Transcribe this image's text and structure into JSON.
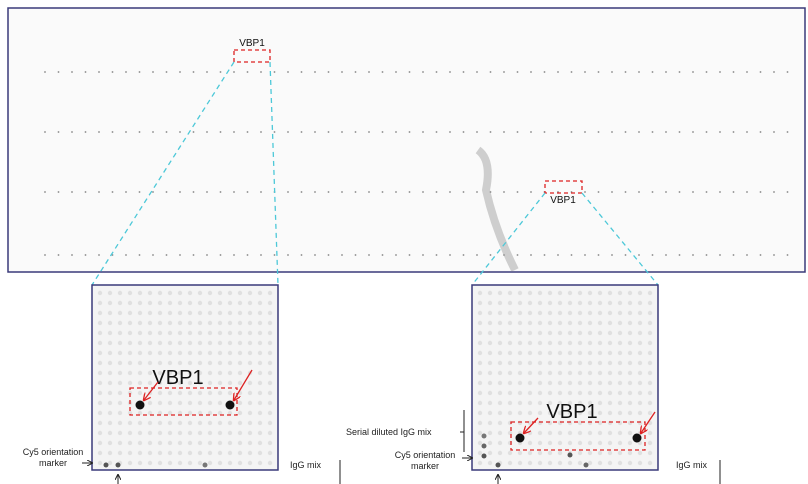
{
  "top_panel": {
    "labels": [
      "VBP1",
      "VBP1"
    ]
  },
  "insets": [
    {
      "label": "VBP1",
      "annotations": {
        "orientation": "Cy5 orientation marker",
        "igg": "IgG mix"
      }
    },
    {
      "label": "VBP1",
      "annotations": {
        "serial": "Serial diluted IgG mix",
        "orientation": "Cy5 orientation marker",
        "igg": "IgG mix"
      }
    }
  ]
}
